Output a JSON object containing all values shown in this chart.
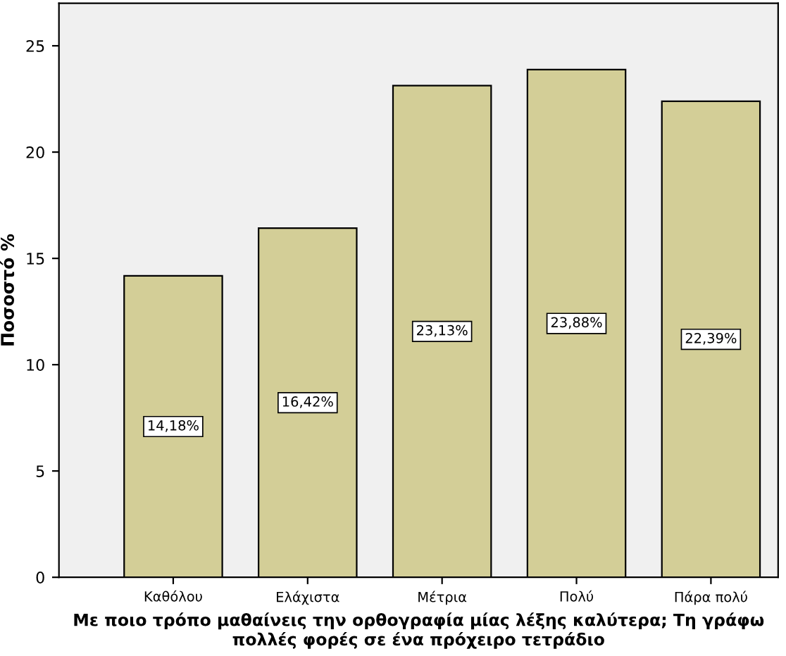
{
  "chart_data": {
    "type": "bar",
    "xlabel": "Με ποιο τρόπο μαθαίνεις την ορθογραφία μίας λέξης καλύτερα; Τη γράφω πολλές φορές σε ένα πρόχειρο τετράδιο",
    "ylabel": "Ποσοστό %",
    "categories": [
      "Καθόλου",
      "Ελάχιστα",
      "Μέτρια",
      "Πολύ",
      "Πάρα πολύ"
    ],
    "values": [
      14.18,
      16.42,
      23.13,
      23.88,
      22.39
    ],
    "value_labels": [
      "14,18%",
      "16,42%",
      "23,13%",
      "23,88%",
      "22,39%"
    ],
    "color": "#d3ce97",
    "ylim": [
      0,
      27
    ],
    "yticks": [
      0,
      5,
      10,
      15,
      20,
      25
    ],
    "grid": false,
    "legend": false
  }
}
